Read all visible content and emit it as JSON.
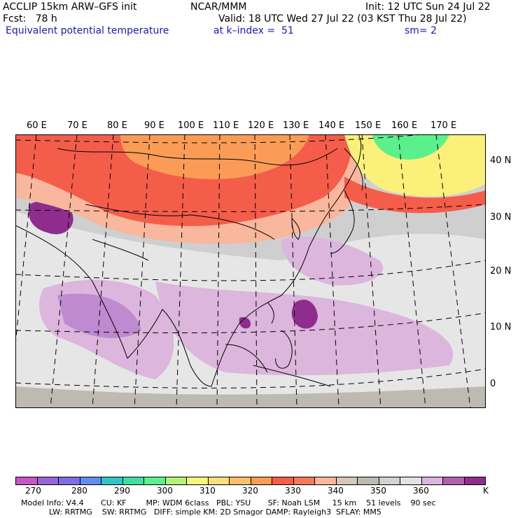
{
  "header": {
    "model": "ACCLIP 15km ARW–GFS init",
    "center": "NCAR/MMM",
    "init": "Init: 12 UTC Sun 24 Jul 22",
    "fcst": "Fcst:   78 h",
    "valid": "Valid: 18 UTC Wed 27 Jul 22 (03 KST Thu 28 Jul 22)",
    "field": "Equivalent potential temperature",
    "level": "at k–index =  51",
    "smooth": "sm= 2"
  },
  "map": {
    "lon_labels": [
      "60 E",
      "70 E",
      "80 E",
      "90 E",
      "100 E",
      "110 E",
      "120 E",
      "130 E",
      "140 E",
      "150 E",
      "160 E",
      "170 E"
    ],
    "lat_labels": [
      "40 N",
      "30 N",
      "20 N",
      "10 N",
      "0"
    ],
    "colors": {
      "ocean_gray": "#cfcfcf",
      "light_gray": "#e6e6e6",
      "dark_gray": "#bdbab2",
      "orange": "#fb9c56",
      "red_orange": "#f45d4a",
      "salmon": "#f9b79d",
      "light_purple": "#dcb6dc",
      "mid_purple": "#c08ad0",
      "dark_purple": "#8e2d8e",
      "yellow": "#fbf07a",
      "green": "#5cf08c"
    }
  },
  "colorbar": {
    "colors": [
      "#c656c6",
      "#9b64d6",
      "#7b6ee6",
      "#5f8ef0",
      "#30c4c8",
      "#3ee0a2",
      "#5cf08c",
      "#b2f27a",
      "#f4f87a",
      "#fbe07a",
      "#fbc06a",
      "#fb9c56",
      "#f45d4a",
      "#f47a5a",
      "#f9b79d",
      "#d6c7bb",
      "#bdbab2",
      "#d2d2d2",
      "#e3e3e3",
      "#dcb6dc",
      "#b060b0",
      "#8e2d8e"
    ],
    "labels": [
      "270",
      "280",
      "290",
      "300",
      "310",
      "320",
      "330",
      "340",
      "350",
      "360"
    ],
    "unit": "K"
  },
  "footer": {
    "line1": "Model Info: V4.4       CU: KF        MP: WDM 6class   PBL: YSU       SF: Noah LSM     15 km    51 levels    90 sec",
    "line2": "LW: RRTMG    SW: RRTMG   DIFF: simple KM: 2D Smagor DAMP: Rayleigh3  SFLAY: MM5"
  }
}
